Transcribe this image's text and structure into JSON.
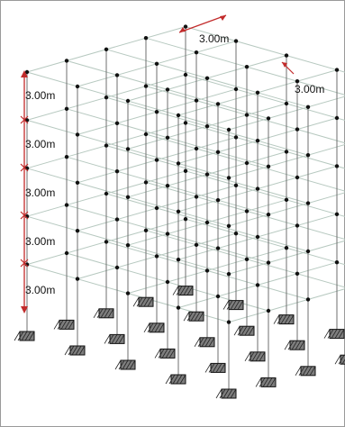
{
  "dimensions": {
    "top_span": "3.00m",
    "side_span": "3.00m",
    "story_heights": [
      "3.00m",
      "3.00m",
      "3.00m",
      "3.00m",
      "3.00m"
    ]
  },
  "colors": {
    "frame": "#b7c9c0",
    "column": "#6f6f6f",
    "node": "#111111",
    "dimension": "#c22b2b",
    "support_fill": "#7d7d7d",
    "support_edge": "#111111"
  }
}
